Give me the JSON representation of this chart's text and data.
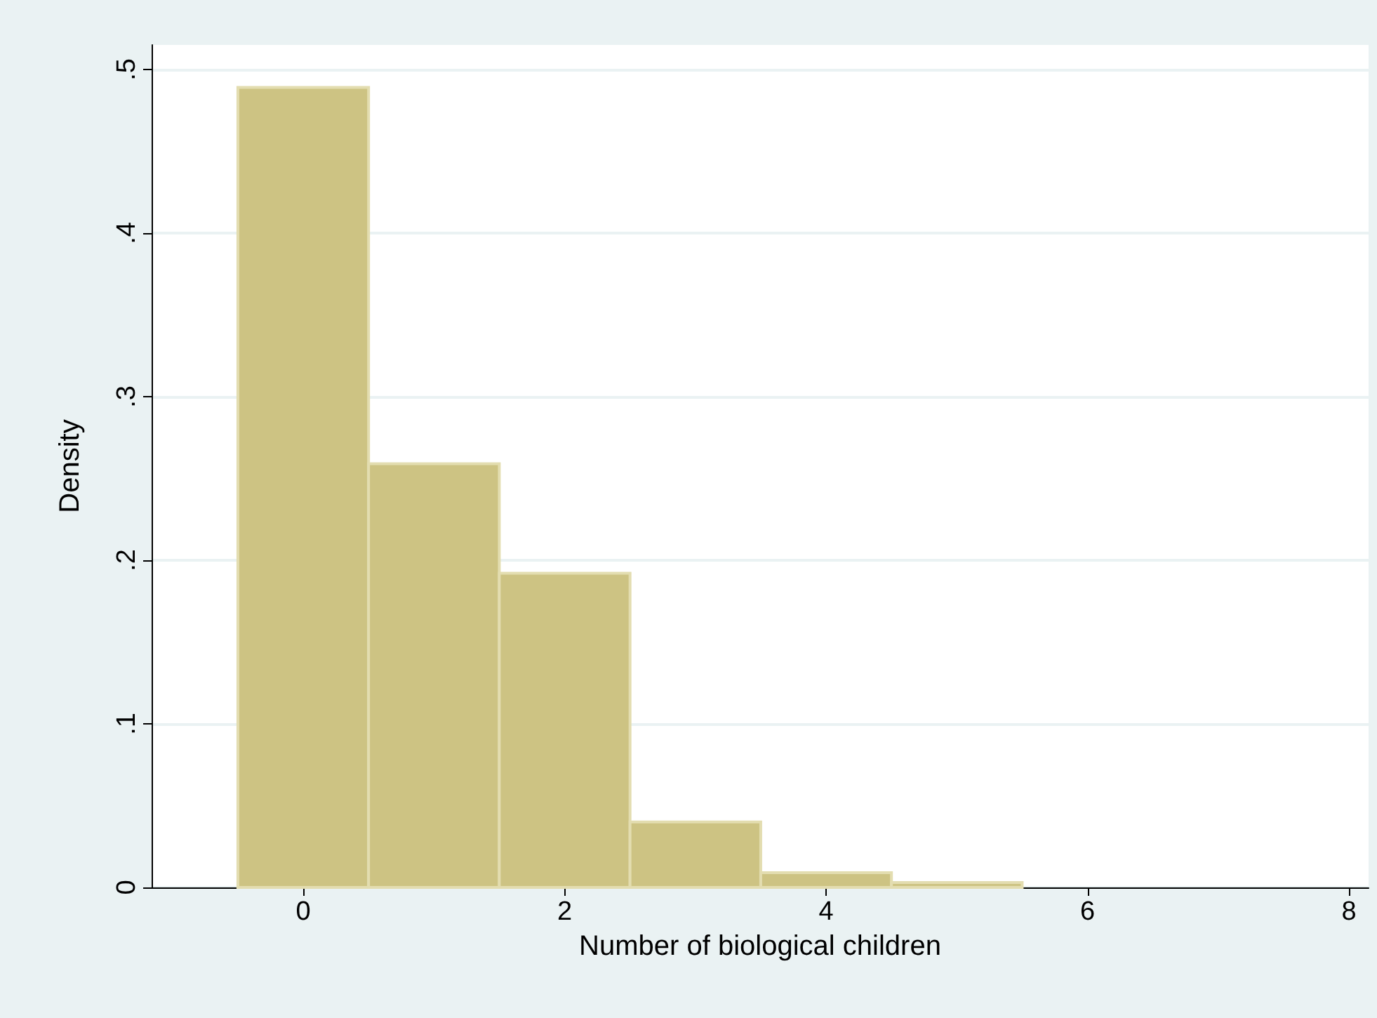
{
  "chart_data": {
    "type": "histogram",
    "xlabel": "Number of biological children",
    "ylabel": "Density",
    "bins": [
      -0.5,
      0.5,
      1.5,
      2.5,
      3.5,
      4.5,
      5.5
    ],
    "values": [
      0.489,
      0.259,
      0.192,
      0.04,
      0.009,
      0.003
    ],
    "color": "#cdc383",
    "xlim": [
      -1.16,
      8.15
    ],
    "xticks": [
      0,
      2,
      4,
      6,
      8
    ],
    "ylim": [
      0,
      0.515
    ],
    "yticks": [
      {
        "value": 0,
        "label": "0"
      },
      {
        "value": 0.1,
        "label": ".1"
      },
      {
        "value": 0.2,
        "label": ".2"
      },
      {
        "value": 0.3,
        "label": ".3"
      },
      {
        "value": 0.4,
        "label": ".4"
      },
      {
        "value": 0.5,
        "label": ".5"
      }
    ],
    "grid": "y"
  }
}
